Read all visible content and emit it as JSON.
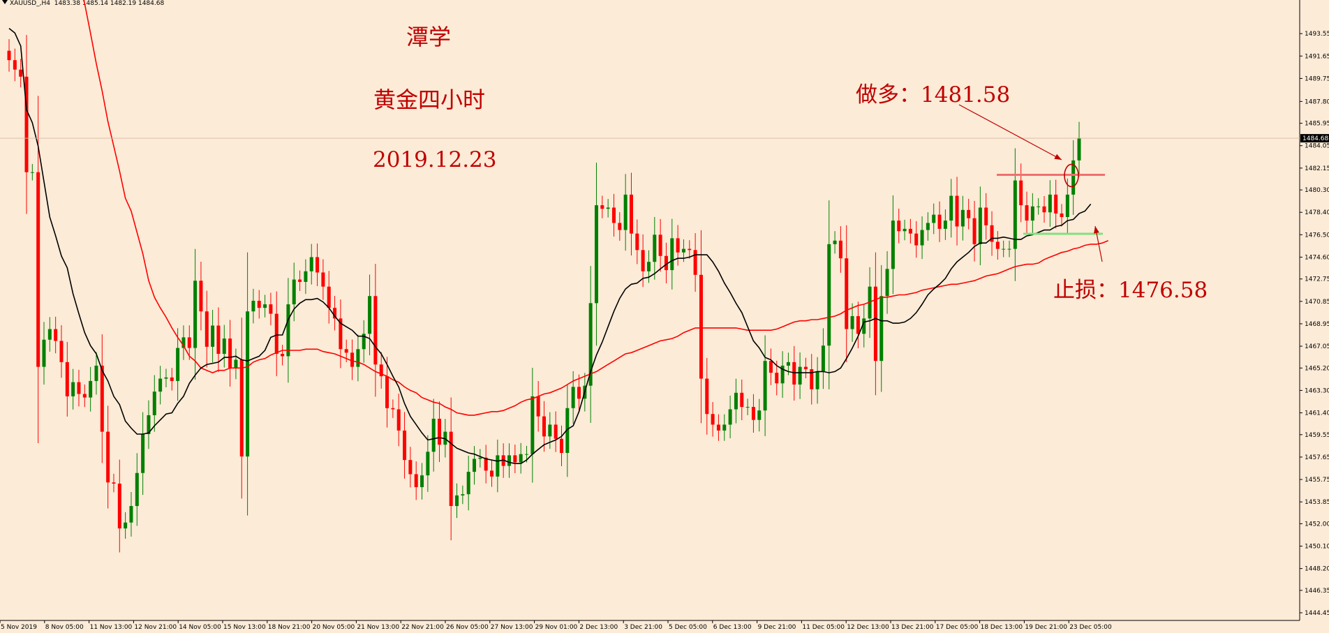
{
  "header": {
    "symbol": "XAUUSD_,H4",
    "ohlc": "1483.38 1485.14 1482.19 1484.68"
  },
  "annotations": {
    "author": "潭学",
    "subtitle": "黄金四小时",
    "date": "2019.12.23",
    "long_entry": "做多：1481.58",
    "stop_loss": "止损：1476.58"
  },
  "colors": {
    "background": "#fbebd7",
    "bull": "#008000",
    "bear": "#ff0000",
    "ma_fast": "#000000",
    "ma_slow": "#ff0000",
    "entry_line": "#f07070",
    "stop_line": "#80e080",
    "annotation": "#c00000"
  },
  "chart_data": {
    "type": "candlestick",
    "instrument": "XAUUSD",
    "timeframe": "H4",
    "ylim": [
      1443.8,
      1496.4
    ],
    "y_ticks": [
      "1493.55",
      "1491.65",
      "1489.75",
      "1487.80",
      "1485.95",
      "1484.05",
      "1482.15",
      "1480.30",
      "1478.40",
      "1476.50",
      "1474.60",
      "1472.75",
      "1470.85",
      "1468.95",
      "1467.05",
      "1465.20",
      "1463.30",
      "1461.40",
      "1459.55",
      "1457.65",
      "1455.75",
      "1453.85",
      "1452.00",
      "1450.10",
      "1448.20",
      "1446.35",
      "1444.45"
    ],
    "x_labels": [
      "5 Nov 2019",
      "8 Nov 05:00",
      "11 Nov 13:00",
      "12 Nov 21:00",
      "14 Nov 05:00",
      "15 Nov 13:00",
      "18 Nov 21:00",
      "20 Nov 05:00",
      "21 Nov 13:00",
      "22 Nov 21:00",
      "26 Nov 05:00",
      "27 Nov 13:00",
      "29 Nov 01:00",
      "2 Dec 13:00",
      "3 Dec 21:00",
      "5 Dec 05:00",
      "6 Dec 13:00",
      "9 Dec 21:00",
      "11 Dec 05:00",
      "12 Dec 13:00",
      "13 Dec 21:00",
      "17 Dec 05:00",
      "18 Dec 13:00",
      "19 Dec 21:00",
      "23 Dec 05:00"
    ],
    "current_price": "1484.68",
    "current_price_value": 1484.68,
    "close": [
      1491.3,
      1490.5,
      1489.9,
      1481.8,
      1481.8,
      1465.3,
      1467.6,
      1468.5,
      1467.5,
      1465.7,
      1462.8,
      1464.0,
      1463.0,
      1462.7,
      1464.1,
      1465.4,
      1459.8,
      1455.5,
      1455.4,
      1451.6,
      1452.1,
      1453.5,
      1456.3,
      1459.6,
      1461.2,
      1463.2,
      1464.3,
      1464.4,
      1464.1,
      1466.9,
      1467.8,
      1466.9,
      1472.6,
      1470.0,
      1467.0,
      1468.8,
      1466.4,
      1467.7,
      1465.2,
      1465.9,
      1457.7,
      1470.0,
      1470.9,
      1470.3,
      1470.6,
      1469.8,
      1466.4,
      1466.2,
      1470.6,
      1472.7,
      1472.5,
      1473.4,
      1474.6,
      1473.3,
      1472.1,
      1470.3,
      1469.4,
      1466.8,
      1466.5,
      1465.3,
      1466.8,
      1468.1,
      1471.3,
      1465.5,
      1464.5,
      1461.8,
      1461.7,
      1459.9,
      1457.4,
      1456.2,
      1455.1,
      1456.1,
      1458.1,
      1460.9,
      1458.7,
      1459.8,
      1453.5,
      1454.4,
      1454.5,
      1456.4,
      1457.5,
      1457.6,
      1456.5,
      1456.0,
      1457.8,
      1456.9,
      1457.8,
      1457.2,
      1457.9,
      1457.9,
      1462.8,
      1461.1,
      1459.4,
      1460.4,
      1459.2,
      1458.0,
      1461.8,
      1463.6,
      1462.6,
      1463.7,
      1470.7,
      1479.0,
      1478.7,
      1478.8,
      1477.5,
      1476.9,
      1479.9,
      1476.6,
      1475.2,
      1473.4,
      1474.2,
      1476.5,
      1474.7,
      1473.5,
      1476.2,
      1475.0,
      1475.3,
      1475.2,
      1473.1,
      1464.3,
      1461.3,
      1460.4,
      1459.9,
      1460.4,
      1461.7,
      1463.1,
      1461.9,
      1461.9,
      1460.8,
      1461.6,
      1465.8,
      1464.8,
      1463.9,
      1465.4,
      1465.7,
      1463.8,
      1465.3,
      1465.1,
      1463.4,
      1464.9,
      1467.1,
      1475.7,
      1476.0,
      1474.5,
      1468.5,
      1469.6,
      1468.1,
      1469.4,
      1472.1,
      1465.8,
      1471.3,
      1473.6,
      1477.7,
      1476.8,
      1477.0,
      1476.6,
      1475.6,
      1476.9,
      1477.5,
      1478.2,
      1477.0,
      1477.7,
      1479.8,
      1477.2,
      1478.6,
      1477.9,
      1475.7,
      1478.8,
      1477.3,
      1475.9,
      1475.3,
      1475.3,
      1475.3,
      1481.1,
      1479.0,
      1477.7,
      1478.9,
      1478.9,
      1478.4,
      1479.9,
      1478.3,
      1478.0,
      1479.9,
      1482.8,
      1484.7
    ],
    "ma_fast": [
      1494.0,
      1493.6,
      1492.5,
      1487.1,
      1486.0,
      1484.0,
      1481.0,
      1478.0,
      1476.4,
      1474.7,
      1473.7,
      1471.5,
      1469.8,
      1468.2,
      1467.1,
      1466.4,
      1465.0,
      1464.1,
      1462.8,
      1462.1,
      1460.7,
      1460.1,
      1459.6,
      1459.6,
      1459.7,
      1460.3,
      1460.8,
      1461.3,
      1461.4,
      1462.2,
      1462.8,
      1463.9,
      1464.6,
      1465.2,
      1465.5,
      1465.6,
      1465.7,
      1466.1,
      1466.1,
      1466.2,
      1465.9,
      1465.8,
      1466.0,
      1466.2,
      1466.7,
      1467.8,
      1468.0,
      1468.0,
      1469.3,
      1470.2,
      1470.7,
      1471.0,
      1471.0,
      1471.1,
      1470.8,
      1470.3,
      1469.6,
      1469.0,
      1468.7,
      1468.4,
      1467.9,
      1467.9,
      1467.7,
      1467.0,
      1466.4,
      1465.5,
      1464.5,
      1463.6,
      1462.2,
      1461.1,
      1460.4,
      1459.7,
      1459.1,
      1459.2,
      1459.3,
      1459.2,
      1458.8,
      1458.4,
      1458.2,
      1458.0,
      1457.9,
      1457.7,
      1457.5,
      1457.4,
      1457.3,
      1457.4,
      1457.2,
      1457.1,
      1457.1,
      1457.4,
      1457.9,
      1458.3,
      1458.7,
      1458.9,
      1459.1,
      1459.4,
      1460.0,
      1460.3,
      1461.5,
      1463.2,
      1464.9,
      1466.3,
      1467.4,
      1468.7,
      1470.0,
      1471.1,
      1471.9,
      1472.3,
      1472.4,
      1472.8,
      1472.9,
      1473.2,
      1473.6,
      1474.0,
      1474.3,
      1474.5,
      1474.5,
      1474.6,
      1474.8,
      1474.8,
      1474.8,
      1474.2,
      1473.4,
      1472.4,
      1471.6,
      1470.7,
      1469.9,
      1468.7,
      1467.5,
      1466.9,
      1466.1,
      1465.9,
      1465.4,
      1465.1,
      1464.9,
      1464.8,
      1464.8,
      1464.8,
      1464.8,
      1464.9,
      1464.9,
      1464.8,
      1464.9,
      1465.2,
      1466.0,
      1466.9,
      1467.9,
      1469.1,
      1469.2,
      1469.4,
      1469.2,
      1469.2,
      1469.0,
      1469.0,
      1469.1,
      1469.4,
      1469.9,
      1470.6,
      1471.4,
      1471.9,
      1472.3,
      1472.8,
      1473.6,
      1474.2,
      1474.6,
      1475.0,
      1475.5,
      1475.8,
      1475.8,
      1476.2,
      1476.2,
      1476.3,
      1476.2,
      1476.1,
      1476.1,
      1476.4,
      1476.5,
      1476.7,
      1476.9,
      1476.9,
      1477.2,
      1477.3,
      1477.7,
      1477.8,
      1478.3,
      1478.5,
      1479.1
    ],
    "ma_slow": [
      1516.6,
      1515.6,
      1513.8,
      1511.9,
      1510.5,
      1509.0,
      1507.9,
      1507.0,
      1505.2,
      1503.1,
      1501.9,
      1500.0,
      1498.1,
      1496.1,
      1493.6,
      1491.0,
      1488.7,
      1486.1,
      1484.0,
      1481.9,
      1479.6,
      1478.5,
      1476.7,
      1474.9,
      1472.6,
      1471.2,
      1470.3,
      1469.5,
      1468.6,
      1467.8,
      1467.1,
      1466.2,
      1465.8,
      1465.2,
      1465.0,
      1464.8,
      1465.0,
      1465.0,
      1465.2,
      1465.2,
      1465.2,
      1465.3,
      1465.7,
      1465.9,
      1466.0,
      1466.3,
      1466.5,
      1466.7,
      1466.7,
      1466.7,
      1466.7,
      1466.8,
      1466.8,
      1466.8,
      1466.6,
      1466.5,
      1466.4,
      1466.2,
      1466.0,
      1465.8,
      1465.7,
      1465.5,
      1465.2,
      1464.9,
      1464.7,
      1464.5,
      1464.2,
      1464.0,
      1463.6,
      1463.3,
      1463.1,
      1462.7,
      1462.5,
      1462.3,
      1462.2,
      1461.9,
      1461.7,
      1461.4,
      1461.3,
      1461.2,
      1461.2,
      1461.3,
      1461.4,
      1461.5,
      1461.5,
      1461.6,
      1461.8,
      1462.0,
      1462.3,
      1462.5,
      1462.6,
      1462.8,
      1463.0,
      1463.1,
      1463.3,
      1463.5,
      1463.8,
      1464.1,
      1464.3,
      1464.5,
      1464.7,
      1464.9,
      1465.2,
      1465.5,
      1465.8,
      1466.1,
      1466.4,
      1466.5,
      1466.7,
      1466.9,
      1467.1,
      1467.3,
      1467.5,
      1467.6,
      1467.7,
      1467.9,
      1468.2,
      1468.4,
      1468.6,
      1468.6,
      1468.6,
      1468.6,
      1468.6,
      1468.6,
      1468.6,
      1468.6,
      1468.5,
      1468.4,
      1468.4,
      1468.4,
      1468.4,
      1468.4,
      1468.5,
      1468.7,
      1468.9,
      1469.1,
      1469.2,
      1469.2,
      1469.3,
      1469.3,
      1469.4,
      1469.5,
      1469.6,
      1469.8,
      1470.1,
      1470.3,
      1470.5,
      1470.6,
      1470.8,
      1471.0,
      1471.2,
      1471.2,
      1471.3,
      1471.4,
      1471.4,
      1471.5,
      1471.6,
      1471.8,
      1471.9,
      1472.0,
      1472.1,
      1472.2,
      1472.3,
      1472.3,
      1472.4,
      1472.5,
      1472.6,
      1472.8,
      1473.0,
      1473.1,
      1473.2,
      1473.4,
      1473.6,
      1473.8,
      1473.9,
      1474.0,
      1474.0,
      1474.1,
      1474.4,
      1474.6,
      1474.8,
      1475.0,
      1475.1,
      1475.3,
      1475.4,
      1475.6,
      1475.7,
      1475.7,
      1475.8,
      1476.0
    ],
    "levels": [
      {
        "label": "做多",
        "value": 1481.58
      },
      {
        "label": "止损",
        "value": 1476.58
      }
    ]
  }
}
